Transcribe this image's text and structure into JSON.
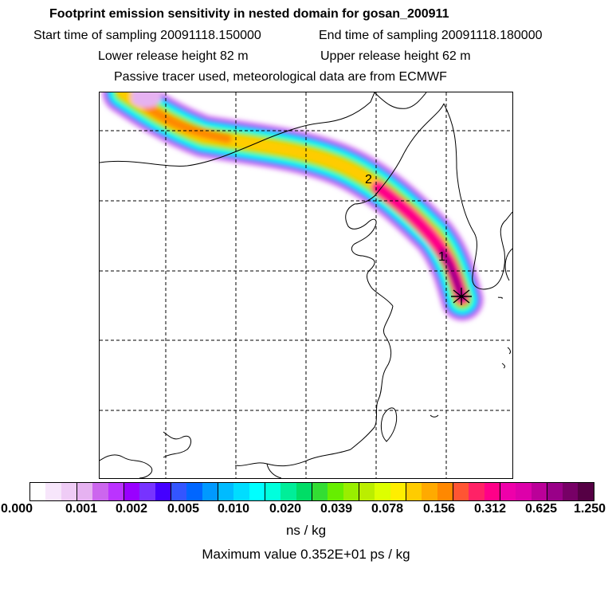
{
  "header": {
    "title": "Footprint emission sensitivity in nested domain for gosan_200911",
    "start_label": "Start time of sampling 20091118.150000",
    "end_label": "End time of sampling 20091118.180000",
    "lower_label": "Lower release height   82 m",
    "upper_label": "Upper release height   62 m",
    "note": "Passive tracer used, meteorological data are from ECMWF"
  },
  "map": {
    "markers": [
      {
        "label": "1"
      },
      {
        "label": "2"
      }
    ],
    "release_site_icon": "star-marker-icon"
  },
  "colorbar": {
    "colors": [
      "#ffffff",
      "#f7e6fb",
      "#efccf6",
      "#e6b2f1",
      "#cc66ee",
      "#bb33ff",
      "#9900ff",
      "#7733ff",
      "#4400ff",
      "#3355ff",
      "#0066ff",
      "#0099ff",
      "#00bbff",
      "#00ddff",
      "#00ffff",
      "#00ffdd",
      "#00ee99",
      "#00dd66",
      "#33dd33",
      "#66ee00",
      "#99ee00",
      "#bbee00",
      "#ddff00",
      "#ffee00",
      "#ffcc00",
      "#ffaa00",
      "#ff8800",
      "#ff5533",
      "#ff2266",
      "#ff0088",
      "#ee00aa",
      "#dd00aa",
      "#bb0099",
      "#990088",
      "#770066",
      "#550044"
    ],
    "ticks": [
      "0.000",
      "0.001",
      "0.002",
      "0.005",
      "0.010",
      "0.020",
      "0.039",
      "0.078",
      "0.156",
      "0.312",
      "0.625",
      "1.250"
    ],
    "units": "ns / kg",
    "max_value": "Maximum value  0.352E+01 ps / kg"
  }
}
